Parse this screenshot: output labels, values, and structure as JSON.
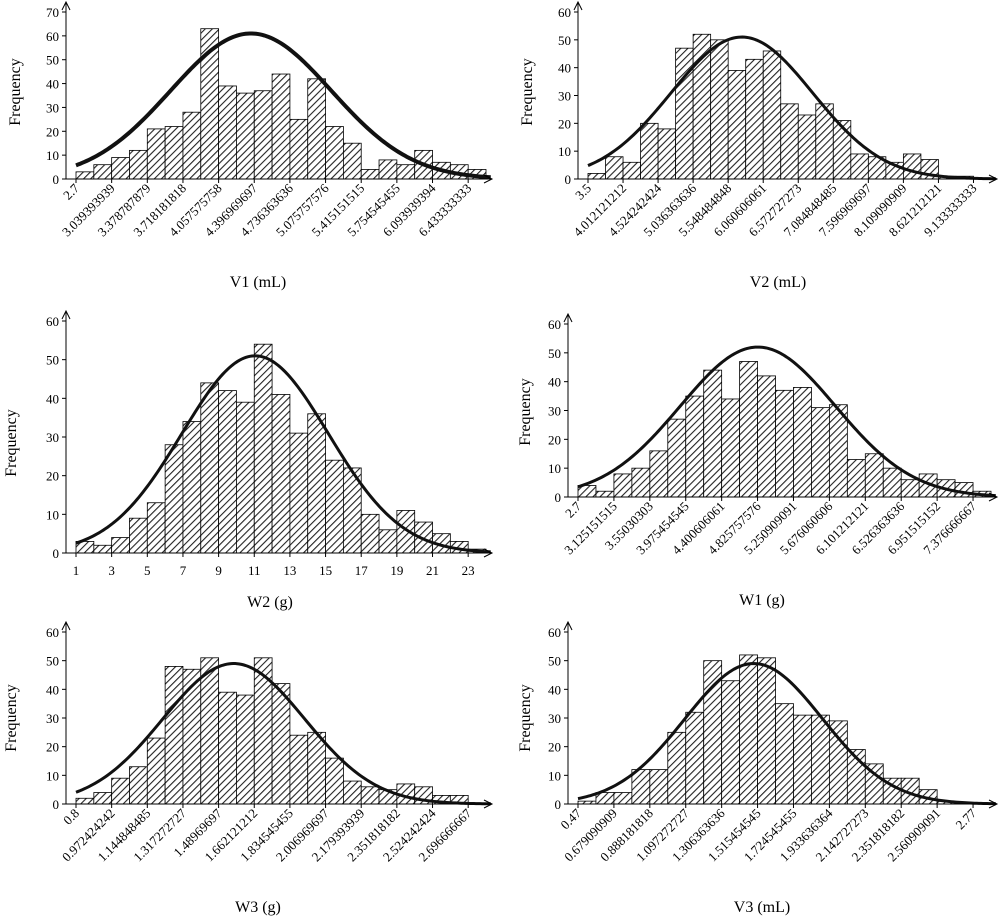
{
  "chart_data": [
    {
      "type": "bar",
      "xlabel": "V1 (mL)",
      "ylabel": "Frequency",
      "ylim": [
        0,
        70
      ],
      "yticks": [
        "0",
        "10",
        "20",
        "30",
        "40",
        "50",
        "60",
        "70"
      ],
      "x_tick_labels": [
        "2.7",
        "3.039393939",
        "3.378787879",
        "3.718181818",
        "4.057575758",
        "4.396969697",
        "4.736363636",
        "5.075757576",
        "5.415151515",
        "5.754545455",
        "6.093939394",
        "6.433333333"
      ],
      "values": [
        3,
        6,
        9,
        12,
        21,
        22,
        28,
        63,
        39,
        36,
        37,
        44,
        25,
        42,
        22,
        15,
        4,
        8,
        6,
        12,
        7,
        6,
        4
      ],
      "normal_curve": {
        "mean": 4.6,
        "sd": 0.72,
        "peak": 61
      }
    },
    {
      "type": "bar",
      "xlabel": "V2 (mL)",
      "ylabel": "Frequency",
      "ylim": [
        0,
        60
      ],
      "yticks": [
        "0",
        "10",
        "20",
        "30",
        "40",
        "50",
        "60"
      ],
      "x_tick_labels": [
        "3.5",
        "4.012121212",
        "4.524242424",
        "5.036363636",
        "5.548484848",
        "6.060606061",
        "6.572727273",
        "7.084848485",
        "7.596969697",
        "8.109090909",
        "8.621212121",
        "9.133333333"
      ],
      "values": [
        2,
        8,
        6,
        20,
        18,
        47,
        52,
        50,
        39,
        43,
        46,
        27,
        23,
        27,
        21,
        9,
        8,
        6,
        9,
        7,
        1,
        1,
        0
      ],
      "normal_curve": {
        "mean": 6.15,
        "sd": 1.05,
        "peak": 51
      }
    },
    {
      "type": "bar",
      "xlabel": "W2 (g)",
      "ylabel": "Frequency",
      "ylim": [
        0,
        60
      ],
      "yticks": [
        "0",
        "10",
        "20",
        "30",
        "40",
        "50",
        "60"
      ],
      "x_tick_labels": [
        "1",
        "3",
        "5",
        "7",
        "9",
        "11",
        "13",
        "15",
        "17",
        "19",
        "21",
        "23"
      ],
      "values": [
        3,
        2,
        4,
        9,
        13,
        28,
        34,
        44,
        42,
        39,
        54,
        41,
        31,
        36,
        24,
        22,
        10,
        6,
        11,
        8,
        5,
        3,
        1
      ],
      "normal_curve": {
        "mean": 11.5,
        "sd": 4.5,
        "peak": 51
      }
    },
    {
      "type": "bar",
      "xlabel": "W1 (g)",
      "ylabel": "Frequency",
      "ylim": [
        0,
        60
      ],
      "yticks": [
        "0",
        "10",
        "20",
        "30",
        "40",
        "50",
        "60"
      ],
      "x_tick_labels": [
        "2.7",
        "3.125151515",
        "3.55030303",
        "3.975454545",
        "4.400606061",
        "4.825757576",
        "5.250909091",
        "5.676060606",
        "6.101212121",
        "6.526363636",
        "6.951515152",
        "7.376666667"
      ],
      "values": [
        4,
        2,
        8,
        10,
        16,
        27,
        35,
        44,
        34,
        47,
        42,
        37,
        38,
        31,
        32,
        13,
        15,
        10,
        6,
        8,
        6,
        5,
        2
      ],
      "normal_curve": {
        "mean": 5.05,
        "sd": 0.82,
        "peak": 52
      }
    },
    {
      "type": "bar",
      "xlabel": "W3 (g)",
      "ylabel": "Frequency",
      "ylim": [
        0,
        60
      ],
      "yticks": [
        "0",
        "10",
        "20",
        "30",
        "40",
        "50",
        "60"
      ],
      "x_tick_labels": [
        "0.8",
        "0.972424242",
        "1.144848485",
        "1.317272727",
        "1.48969697",
        "1.662121212",
        "1.834545455",
        "2.006969697",
        "2.179393939",
        "2.351818182",
        "2.524242424",
        "2.696666667"
      ],
      "values": [
        2,
        4,
        9,
        13,
        23,
        48,
        47,
        51,
        39,
        38,
        51,
        42,
        24,
        25,
        16,
        8,
        6,
        5,
        7,
        6,
        3,
        3,
        0
      ],
      "normal_curve": {
        "mean": 1.63,
        "sd": 0.38,
        "peak": 49
      }
    },
    {
      "type": "bar",
      "xlabel": "V3 (mL)",
      "ylabel": "Frequency",
      "ylim": [
        0,
        60
      ],
      "yticks": [
        "0",
        "10",
        "20",
        "30",
        "40",
        "50",
        "60"
      ],
      "x_tick_labels": [
        "0.47",
        "0.679090909",
        "0.888181818",
        "1.097272727",
        "1.306363636",
        "1.515454545",
        "1.724545455",
        "1.933636364",
        "2.142727273",
        "2.351818182",
        "2.560909091",
        "2.77"
      ],
      "values": [
        1,
        4,
        4,
        12,
        12,
        25,
        32,
        50,
        43,
        52,
        51,
        35,
        31,
        31,
        29,
        19,
        14,
        9,
        9,
        5,
        1,
        0,
        0
      ],
      "normal_curve": {
        "mean": 1.53,
        "sd": 0.43,
        "peak": 49
      }
    }
  ]
}
